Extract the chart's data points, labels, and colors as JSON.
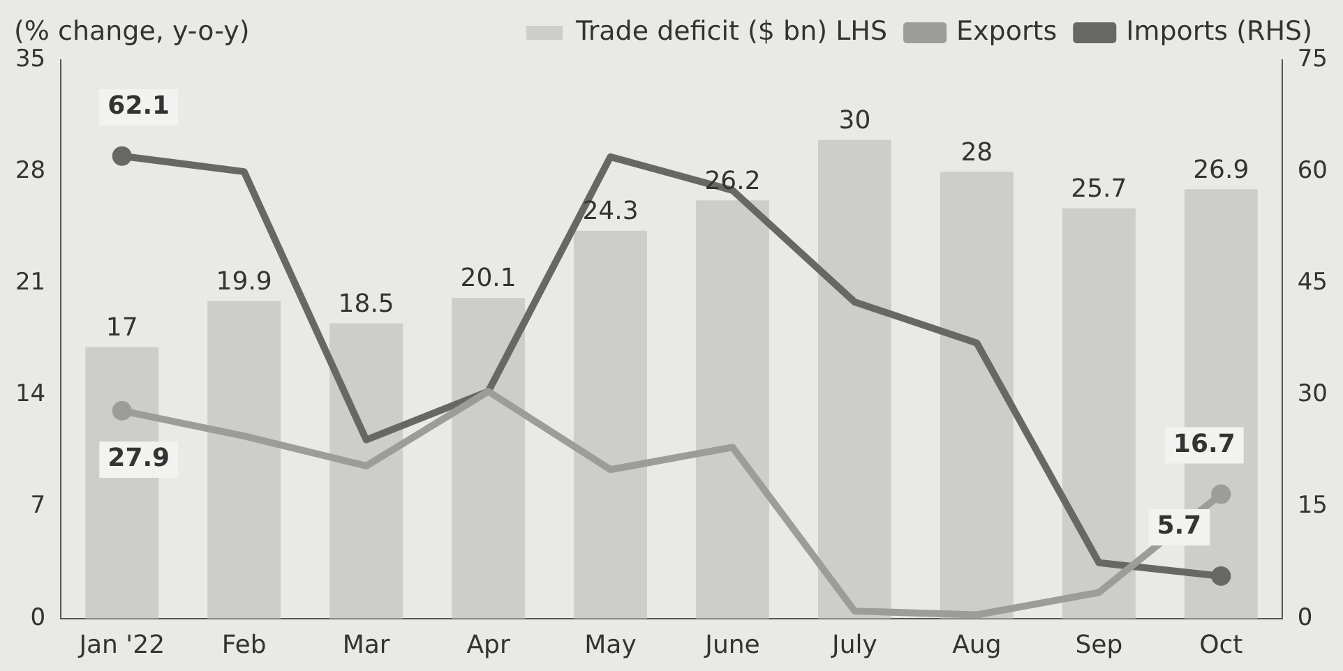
{
  "chart_data": {
    "type": "bar",
    "ylabel": "(% change, y-o-y)",
    "categories": [
      "Jan '22",
      "Feb",
      "Mar",
      "Apr",
      "May",
      "June",
      "July",
      "Aug",
      "Sep",
      "Oct"
    ],
    "series": [
      {
        "name": "Trade deficit ($ bn) LHS",
        "color": "#cdcdcb",
        "values": [
          17,
          19.9,
          18.5,
          20.1,
          24.3,
          26.2,
          30,
          28,
          25.7,
          26.9
        ],
        "data_labels": true
      },
      {
        "name": "Exports",
        "type": "line",
        "axis": "y2",
        "color": "#9c9c9a",
        "values": [
          27.9,
          24.5,
          20.5,
          30.5,
          20,
          23,
          1,
          0.5,
          3.5,
          16.7
        ],
        "value_labels": [
          "27.9",
          null,
          null,
          null,
          null,
          null,
          null,
          null,
          null,
          "16.7"
        ]
      },
      {
        "name": "Imports (RHS)",
        "type": "line",
        "axis": "y2",
        "color": "#676765",
        "values": [
          62.1,
          60,
          24,
          30.5,
          62,
          57.5,
          42.5,
          37,
          7.5,
          5.7
        ],
        "value_labels": [
          "62.1",
          null,
          null,
          null,
          null,
          null,
          null,
          null,
          null,
          "5.7"
        ]
      }
    ],
    "ylim": [
      0,
      35
    ],
    "yticks": [
      0,
      7,
      14,
      21,
      28,
      35
    ],
    "y2lim": [
      0,
      75
    ],
    "y2ticks": [
      0,
      15,
      30,
      45,
      60,
      75
    ],
    "grid": false,
    "legend": "top",
    "marker": "none"
  }
}
